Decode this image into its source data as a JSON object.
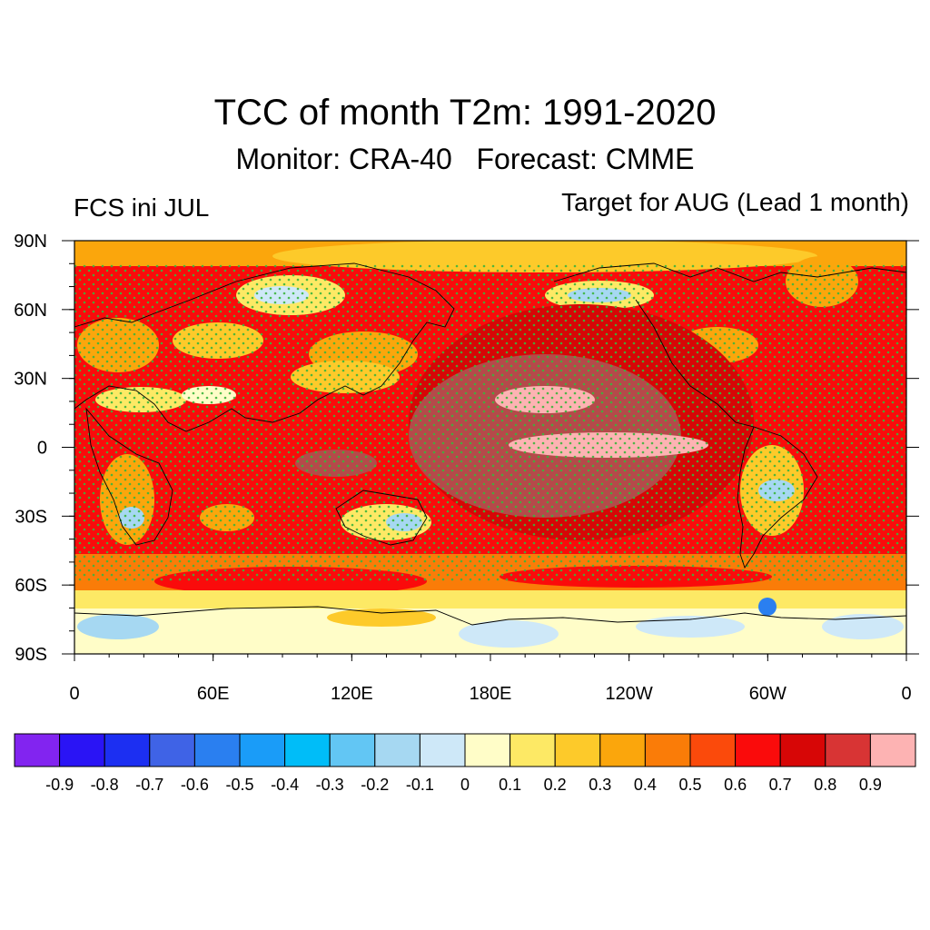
{
  "header": {
    "title": "TCC of month T2m: 1991-2020",
    "subtitle": "Monitor: CRA-40   Forecast: CMME",
    "left_label": "FCS ini JUL",
    "right_label": "Target for AUG (Lead 1 month)"
  },
  "map": {
    "projection": "cylindrical-equidistant",
    "lon_ticks": [
      "0",
      "60E",
      "120E",
      "180E",
      "120W",
      "60W",
      "0"
    ],
    "lat_ticks": [
      "90N",
      "60N",
      "30N",
      "0",
      "30S",
      "60S",
      "90S"
    ],
    "stippling": "significant-correlation-dots",
    "stipple_color": "#3cb43c",
    "coastline_color": "#000000"
  },
  "colorbar": {
    "tick_labels": [
      "-0.9",
      "-0.8",
      "-0.7",
      "-0.6",
      "-0.5",
      "-0.4",
      "-0.3",
      "-0.2",
      "-0.1",
      "0",
      "0.1",
      "0.2",
      "0.3",
      "0.4",
      "0.5",
      "0.6",
      "0.7",
      "0.8",
      "0.9"
    ],
    "colors": [
      "#8224f0",
      "#2a14f5",
      "#1c2ff2",
      "#3f63e6",
      "#2a7ff0",
      "#1a9cf8",
      "#00bdf8",
      "#62c6f4",
      "#a6d8f2",
      "#cee8f8",
      "#fffdc8",
      "#fde965",
      "#fdca2a",
      "#fba60c",
      "#fa7c08",
      "#fb4a0b",
      "#fa0b0b",
      "#d70606",
      "#d83434",
      "#fdb3b3"
    ]
  }
}
